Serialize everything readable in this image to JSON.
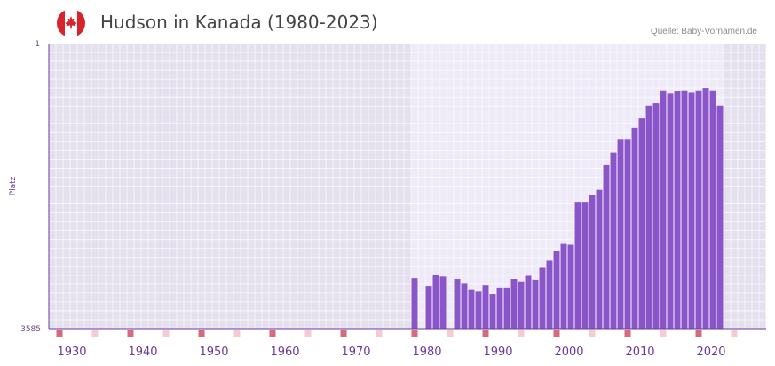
{
  "colors": {
    "bar": "#8a55c8",
    "accent": "#d56a7e",
    "accent_light": "#f3cbd3",
    "axis": "#6a3a9a"
  },
  "header": {
    "flag_icon": "canada-flag-icon"
  },
  "chart_data": {
    "type": "bar",
    "title": "Hudson in Kanada (1980-2023)",
    "source": "Quelle: Baby-Vornamen.de",
    "ylabel": "Platz",
    "xlabel": "",
    "y_reversed": true,
    "ylim": [
      1,
      3585
    ],
    "y_ticks": [
      "1",
      "3585"
    ],
    "xlim": [
      1927,
      2028
    ],
    "x_ticks": [
      1930,
      1940,
      1950,
      1960,
      1970,
      1980,
      1990,
      2000,
      2010,
      2020
    ],
    "x_tick_labels": [
      "1930",
      "1940",
      "1950",
      "1960",
      "1970",
      "1980",
      "1990",
      "2000",
      "2010",
      "2020"
    ],
    "series": [
      {
        "name": "Hudson",
        "x": [
          1978,
          1980,
          1981,
          1982,
          1984,
          1985,
          1986,
          1987,
          1988,
          1989,
          1990,
          1991,
          1992,
          1993,
          1994,
          1995,
          1996,
          1997,
          1998,
          1999,
          2000,
          2001,
          2002,
          2003,
          2004,
          2005,
          2006,
          2007,
          2008,
          2009,
          2010,
          2011,
          2012,
          2013,
          2014,
          2015,
          2016,
          2017,
          2018,
          2019,
          2020,
          2021
        ],
        "values": [
          2950,
          3050,
          2910,
          2930,
          2960,
          3020,
          3090,
          3120,
          3040,
          3150,
          3070,
          3070,
          2960,
          2990,
          2920,
          2970,
          2820,
          2730,
          2610,
          2520,
          2530,
          1990,
          1990,
          1910,
          1840,
          1530,
          1370,
          1210,
          1210,
          1060,
          940,
          780,
          750,
          590,
          630,
          600,
          590,
          620,
          590,
          560,
          590,
          780
        ]
      }
    ]
  }
}
